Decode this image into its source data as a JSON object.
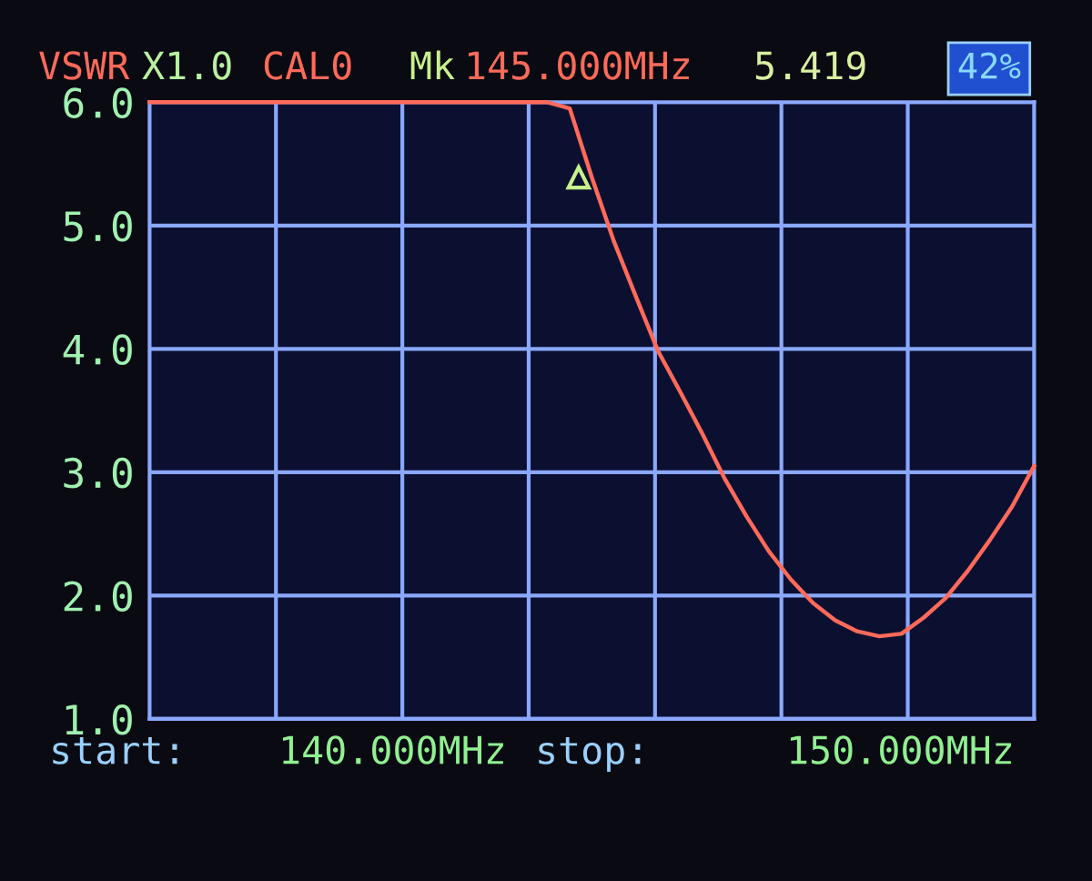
{
  "chart_data": {
    "type": "line",
    "categories": [
      null,
      null,
      null,
      null,
      null,
      null,
      null,
      null,
      null,
      null,
      null,
      null,
      null,
      null,
      null,
      null,
      null,
      null,
      null,
      null,
      null,
      null,
      null,
      null,
      null,
      null,
      null,
      null,
      null,
      null,
      null,
      null,
      null,
      null,
      null,
      null,
      null,
      null,
      null,
      null,
      null
    ],
    "series": [
      {
        "color": "#ff6a5a",
        "values": [
          6.0,
          6.0,
          6.0,
          6.0,
          6.0,
          6.0,
          6.0,
          6.0,
          6.0,
          6.0,
          6.0,
          6.0,
          6.0,
          6.0,
          6.0,
          6.0,
          6.0,
          6.0,
          6.0,
          5.95,
          5.39,
          4.87,
          4.42,
          3.98,
          3.65,
          3.31,
          2.95,
          2.64,
          2.36,
          2.13,
          1.94,
          1.8,
          1.71,
          1.67,
          1.69,
          1.82,
          1.98,
          2.2,
          2.45,
          2.72,
          3.05
        ]
      }
    ],
    "ylim": [
      1,
      6
    ],
    "yticks": [
      {
        "value": 1,
        "label": "1.0"
      },
      {
        "value": 2,
        "label": "2.0"
      },
      {
        "value": 3,
        "label": "3.0"
      },
      {
        "value": 4,
        "label": "4.0"
      },
      {
        "value": 5,
        "label": "5.0"
      },
      {
        "value": 6,
        "label": "6.0"
      }
    ],
    "tick_labels": "y",
    "grid": true,
    "marker": "none",
    "annotations": [
      "VSWR",
      "X1.0",
      "CAL0",
      "Mk",
      "145.000MHz",
      "5.419",
      "42%",
      "start:",
      "140.000MHz",
      "stop:",
      "150.000MHz"
    ]
  }
}
